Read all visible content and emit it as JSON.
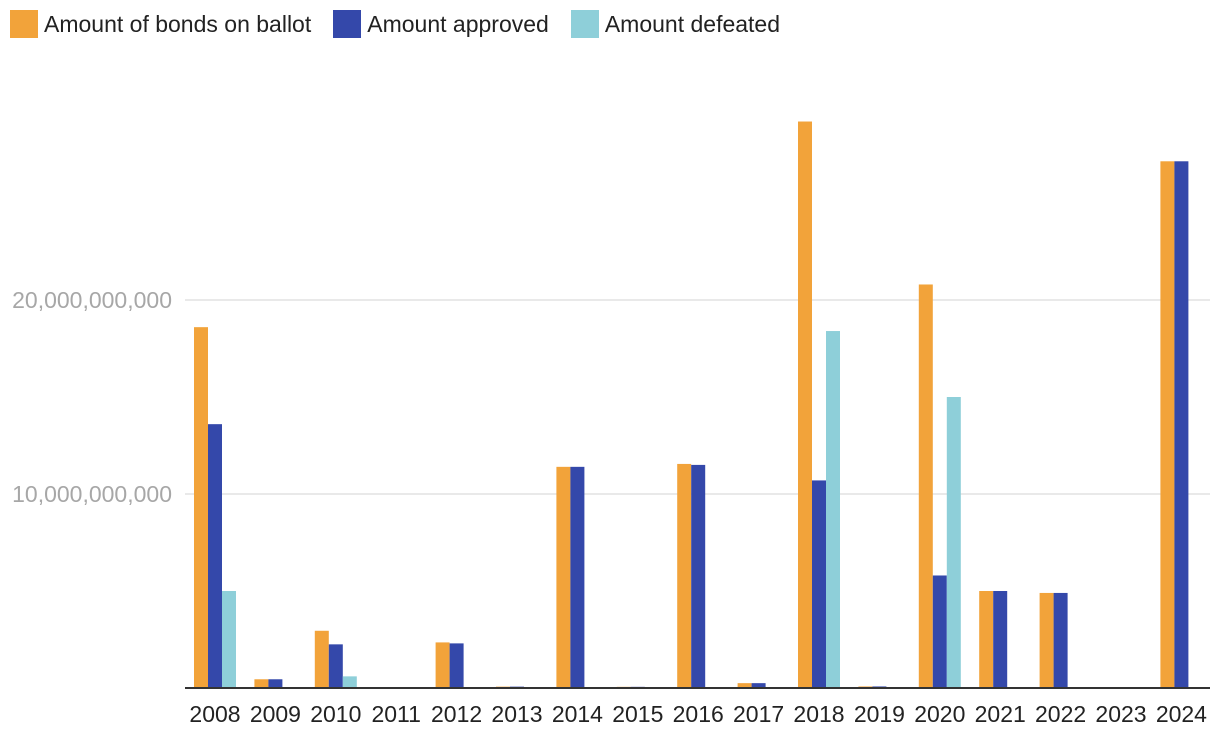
{
  "chart_data": {
    "type": "bar",
    "categories": [
      "2008",
      "2009",
      "2010",
      "2011",
      "2012",
      "2013",
      "2014",
      "2015",
      "2016",
      "2017",
      "2018",
      "2019",
      "2020",
      "2021",
      "2022",
      "2023",
      "2024"
    ],
    "series": [
      {
        "name": "Amount of bonds on ballot",
        "color": "#f2a33a",
        "values": [
          18600000000,
          450000000,
          2950000000,
          0,
          2350000000,
          70000000,
          11400000000,
          60000000,
          11550000000,
          250000000,
          29200000000,
          80000000,
          20800000000,
          5000000000,
          4900000000,
          0,
          27150000000
        ]
      },
      {
        "name": "Amount approved",
        "color": "#3448aa",
        "values": [
          13600000000,
          450000000,
          2250000000,
          0,
          2300000000,
          70000000,
          11400000000,
          60000000,
          11500000000,
          250000000,
          10700000000,
          80000000,
          5800000000,
          5000000000,
          4900000000,
          0,
          27150000000
        ]
      },
      {
        "name": "Amount defeated",
        "color": "#8ecfd9",
        "values": [
          5000000000,
          0,
          600000000,
          0,
          0,
          0,
          0,
          0,
          0,
          0,
          18400000000,
          0,
          15000000000,
          0,
          0,
          0,
          0
        ]
      }
    ],
    "ylim": [
      0,
      30000000000
    ],
    "yticks": [
      10000000000,
      20000000000
    ],
    "ytick_labels": [
      "10,000,000,000",
      "20,000,000,000"
    ],
    "legend_position": "top-left",
    "grid": true
  }
}
